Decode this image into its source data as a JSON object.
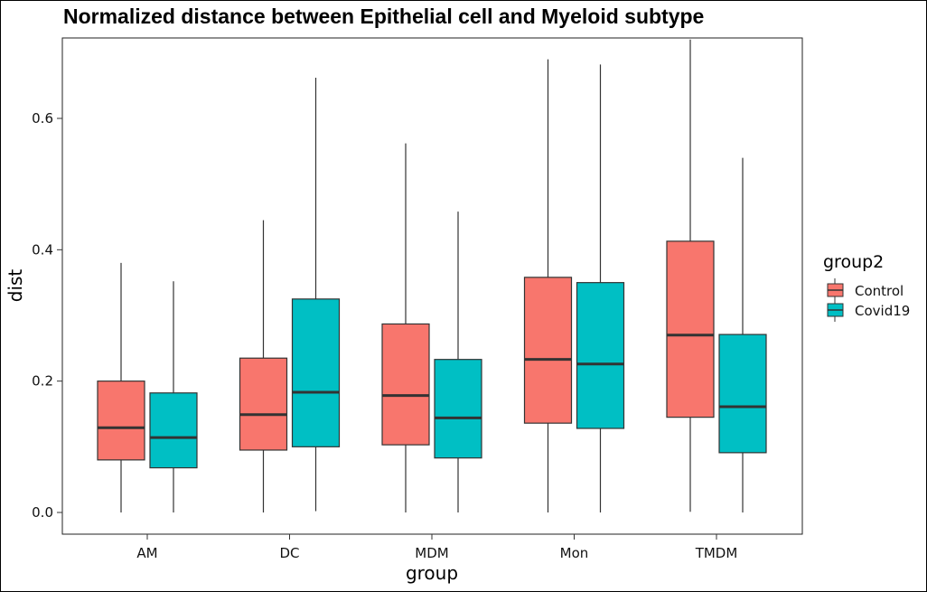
{
  "chart_data": {
    "type": "boxplot",
    "title": "Normalized distance between Epithelial cell and Myeloid subtype",
    "xlabel": "group",
    "ylabel": "dist",
    "categories": [
      "AM",
      "DC",
      "MDM",
      "Mon",
      "TMDM"
    ],
    "ylim": [
      -0.03,
      0.72
    ],
    "yticks": [
      0.0,
      0.2,
      0.4,
      0.6
    ],
    "ytick_labels": [
      "0.0",
      "0.2",
      "0.4",
      "0.6"
    ],
    "grid": false,
    "legend": {
      "title": "group2",
      "position": "right"
    },
    "series": [
      {
        "name": "Control",
        "color": "#F8766D",
        "boxes": [
          {
            "min": 0.0,
            "q1": 0.08,
            "median": 0.129,
            "q3": 0.2,
            "max": 0.38
          },
          {
            "min": 0.0,
            "q1": 0.095,
            "median": 0.149,
            "q3": 0.235,
            "max": 0.445
          },
          {
            "min": 0.0,
            "q1": 0.103,
            "median": 0.178,
            "q3": 0.287,
            "max": 0.562
          },
          {
            "min": 0.0,
            "q1": 0.136,
            "median": 0.233,
            "q3": 0.358,
            "max": 0.69
          },
          {
            "min": 0.001,
            "q1": 0.145,
            "median": 0.27,
            "q3": 0.413,
            "max": 0.72
          }
        ]
      },
      {
        "name": "Covid19",
        "color": "#00BFC4",
        "boxes": [
          {
            "min": 0.0,
            "q1": 0.068,
            "median": 0.114,
            "q3": 0.182,
            "max": 0.352
          },
          {
            "min": 0.002,
            "q1": 0.1,
            "median": 0.183,
            "q3": 0.325,
            "max": 0.662
          },
          {
            "min": 0.0,
            "q1": 0.083,
            "median": 0.144,
            "q3": 0.233,
            "max": 0.458
          },
          {
            "min": 0.0,
            "q1": 0.128,
            "median": 0.226,
            "q3": 0.35,
            "max": 0.682
          },
          {
            "min": 0.0,
            "q1": 0.091,
            "median": 0.161,
            "q3": 0.271,
            "max": 0.54
          }
        ]
      }
    ]
  }
}
